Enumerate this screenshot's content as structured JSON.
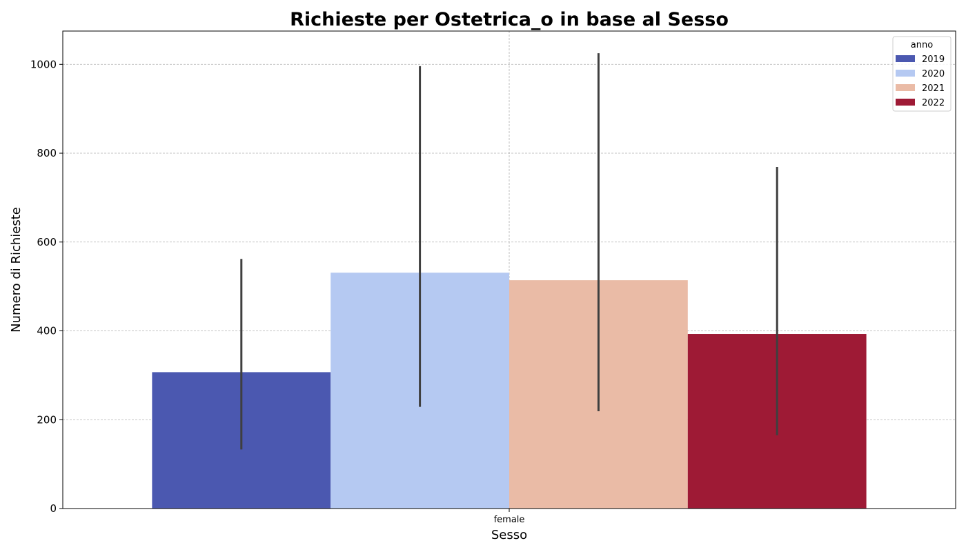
{
  "chart_data": {
    "type": "bar",
    "title": "Richieste per Ostetrica_o in base al Sesso",
    "xlabel": "Sesso",
    "ylabel": "Numero di Richieste",
    "categories": [
      "female"
    ],
    "ylim": [
      0,
      1075
    ],
    "yticks": [
      0,
      200,
      400,
      600,
      800,
      1000
    ],
    "grid": true,
    "legend": {
      "title": "anno",
      "placement": "top-right"
    },
    "series": [
      {
        "name": "2019",
        "values": [
          307
        ],
        "error_low": [
          133
        ],
        "error_high": [
          562
        ],
        "color": "#4b58b0"
      },
      {
        "name": "2020",
        "values": [
          531
        ],
        "error_low": [
          229
        ],
        "error_high": [
          996
        ],
        "color": "#b5c9f2"
      },
      {
        "name": "2021",
        "values": [
          514
        ],
        "error_low": [
          219
        ],
        "error_high": [
          1025
        ],
        "color": "#eabba6"
      },
      {
        "name": "2022",
        "values": [
          393
        ],
        "error_low": [
          165
        ],
        "error_high": [
          769
        ],
        "color": "#9e1a35"
      }
    ],
    "errorbar_color": "#3f3f3f"
  }
}
